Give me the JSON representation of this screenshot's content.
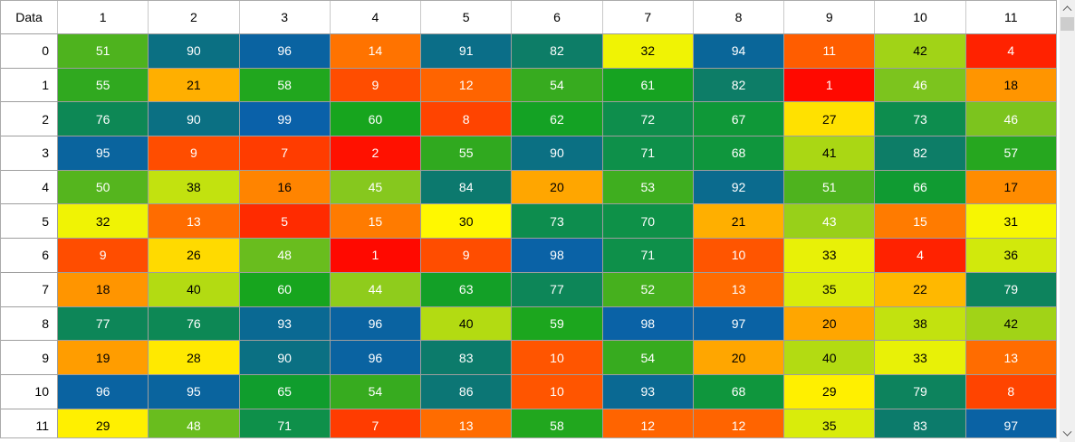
{
  "grid": {
    "corner_label": "Data",
    "column_headers": [
      "1",
      "2",
      "3",
      "4",
      "5",
      "6",
      "7",
      "8",
      "9",
      "10",
      "11"
    ],
    "row_headers": [
      "0",
      "1",
      "2",
      "3",
      "4",
      "5",
      "6",
      "7",
      "8",
      "9",
      "10",
      "11"
    ],
    "rows": [
      [
        51,
        90,
        96,
        14,
        91,
        82,
        32,
        94,
        11,
        42,
        4
      ],
      [
        55,
        21,
        58,
        9,
        12,
        54,
        61,
        82,
        1,
        46,
        18
      ],
      [
        76,
        90,
        99,
        60,
        8,
        62,
        72,
        67,
        27,
        73,
        46
      ],
      [
        95,
        9,
        7,
        2,
        55,
        90,
        71,
        68,
        41,
        82,
        57
      ],
      [
        50,
        38,
        16,
        45,
        84,
        20,
        53,
        92,
        51,
        66,
        17
      ],
      [
        32,
        13,
        5,
        15,
        30,
        73,
        70,
        21,
        43,
        15,
        31
      ],
      [
        9,
        26,
        48,
        1,
        9,
        98,
        71,
        10,
        33,
        4,
        36
      ],
      [
        18,
        40,
        60,
        44,
        63,
        77,
        52,
        13,
        35,
        22,
        79
      ],
      [
        77,
        76,
        93,
        96,
        40,
        59,
        98,
        97,
        20,
        38,
        42
      ],
      [
        19,
        28,
        90,
        96,
        83,
        10,
        54,
        20,
        40,
        33,
        13
      ],
      [
        96,
        95,
        65,
        54,
        86,
        10,
        93,
        68,
        29,
        79,
        8
      ],
      [
        29,
        48,
        71,
        7,
        13,
        58,
        12,
        12,
        35,
        83,
        97
      ]
    ]
  },
  "heatmap": {
    "value_range": [
      0,
      100
    ],
    "gradient_stops": [
      [
        0,
        "#FF0000"
      ],
      [
        5,
        "#FF2B00"
      ],
      [
        10,
        "#FF5500"
      ],
      [
        15,
        "#FF7B00"
      ],
      [
        20,
        "#FFA600"
      ],
      [
        25,
        "#FFD200"
      ],
      [
        30,
        "#FFF800"
      ],
      [
        35,
        "#D9EC0B"
      ],
      [
        40,
        "#B3DB12"
      ],
      [
        45,
        "#86C81E"
      ],
      [
        50,
        "#55B51E"
      ],
      [
        55,
        "#30A91F"
      ],
      [
        60,
        "#17A51E"
      ],
      [
        65,
        "#109D2D"
      ],
      [
        70,
        "#0E9148"
      ],
      [
        75,
        "#0D8A52"
      ],
      [
        80,
        "#0D8160"
      ],
      [
        85,
        "#0C7772"
      ],
      [
        90,
        "#0B7083"
      ],
      [
        95,
        "#0A649E"
      ],
      [
        100,
        "#0A60AC"
      ]
    ],
    "white_text_low_max": 15,
    "white_text_high_min": 43,
    "light_text_color": "#FFFFFF",
    "dark_text_color": "#000000"
  },
  "scrollbar": {
    "orientation": "vertical",
    "track_color": "#F0F0F0",
    "thumb_color": "#CDCDCD",
    "arrow_color": "#5E5E5E",
    "up_icon": "chevron-up",
    "down_icon": "chevron-down"
  }
}
